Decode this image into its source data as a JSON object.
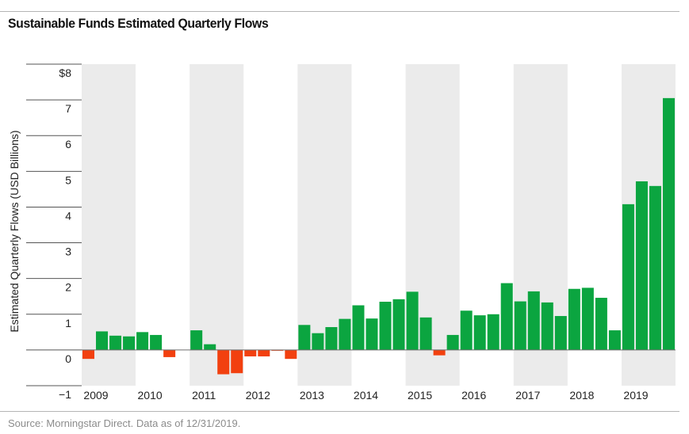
{
  "chart_data": {
    "type": "bar",
    "title": "Sustainable Funds Estimated Quarterly Flows",
    "ylabel": "Estimated Quarterly Flows (USD Billions)",
    "xlabel": "",
    "ylim": [
      -1,
      8
    ],
    "ytick_values": [
      8,
      7,
      6,
      5,
      4,
      3,
      2,
      1,
      0,
      -1
    ],
    "ytick_labels": [
      "$8",
      "7",
      "6",
      "5",
      "4",
      "3",
      "2",
      "1",
      "0",
      "−1"
    ],
    "years": [
      "2009",
      "2010",
      "2011",
      "2012",
      "2013",
      "2014",
      "2015",
      "2016",
      "2017",
      "2018",
      "2019"
    ],
    "categories": [
      "2009 Q1",
      "2009 Q2",
      "2009 Q3",
      "2009 Q4",
      "2010 Q1",
      "2010 Q2",
      "2010 Q3",
      "2010 Q4",
      "2011 Q1",
      "2011 Q2",
      "2011 Q3",
      "2011 Q4",
      "2012 Q1",
      "2012 Q2",
      "2012 Q3",
      "2012 Q4",
      "2013 Q1",
      "2013 Q2",
      "2013 Q3",
      "2013 Q4",
      "2014 Q1",
      "2014 Q2",
      "2014 Q3",
      "2014 Q4",
      "2015 Q1",
      "2015 Q2",
      "2015 Q3",
      "2015 Q4",
      "2016 Q1",
      "2016 Q2",
      "2016 Q3",
      "2016 Q4",
      "2017 Q1",
      "2017 Q2",
      "2017 Q3",
      "2017 Q4",
      "2018 Q1",
      "2018 Q2",
      "2018 Q3",
      "2018 Q4",
      "2019 Q1",
      "2019 Q2",
      "2019 Q3",
      "2019 Q4"
    ],
    "values": [
      -0.25,
      0.52,
      0.4,
      0.38,
      0.5,
      0.42,
      -0.2,
      0.0,
      0.55,
      0.16,
      -0.68,
      -0.65,
      -0.18,
      -0.18,
      -0.02,
      -0.25,
      0.7,
      0.47,
      0.64,
      0.87,
      1.25,
      0.88,
      1.35,
      1.42,
      1.63,
      0.91,
      -0.15,
      0.42,
      1.1,
      0.97,
      1.0,
      1.87,
      1.36,
      1.64,
      1.33,
      0.95,
      1.71,
      1.74,
      1.46,
      0.55,
      4.08,
      4.72,
      4.59,
      7.05
    ],
    "colors": {
      "positive": "#0ba540",
      "negative": "#f2400f",
      "band": "#ebebeb",
      "axis": "#333333",
      "rule": "#b5b5b5"
    }
  },
  "source": "Source: Morningstar Direct. Data as of 12/31/2019."
}
